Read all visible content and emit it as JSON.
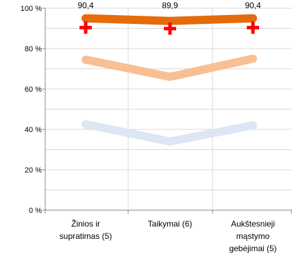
{
  "chart_data": {
    "type": "line",
    "categories": [
      [
        "Žinios ir",
        "supratimas (5)"
      ],
      [
        "Taikymai (6)"
      ],
      [
        "Aukštesnieji",
        "mąstymo",
        "gebėjimai (5)"
      ]
    ],
    "ylim": [
      0,
      100
    ],
    "yticks": [
      0,
      20,
      40,
      60,
      80,
      100
    ],
    "ytick_suffix": " %",
    "grid": true,
    "series": [
      {
        "values": [
          42.5,
          34,
          42
        ],
        "color": "#dce6f4",
        "width": "thick"
      },
      {
        "values": [
          74.5,
          66,
          75
        ],
        "color": "#f8bf94",
        "width": "thick"
      },
      {
        "values": [
          95,
          93.7,
          95
        ],
        "color": "#e46c0a",
        "width": "thick"
      }
    ],
    "markers": {
      "values": [
        90.4,
        89.9,
        90.4
      ],
      "symbol": "+",
      "color": "#ff0000"
    },
    "data_labels": [
      "90,4",
      "89,9",
      "90,4"
    ]
  }
}
